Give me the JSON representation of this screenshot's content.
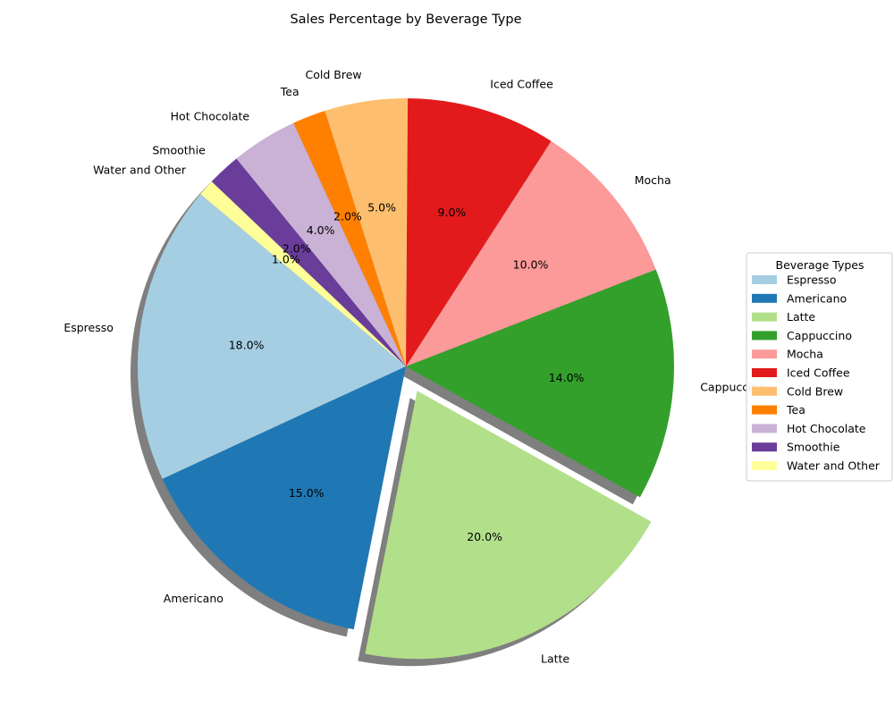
{
  "chart_data": {
    "type": "pie",
    "title": "Sales Percentage by Beverage Type",
    "categories": [
      "Espresso",
      "Americano",
      "Latte",
      "Cappuccino",
      "Mocha",
      "Iced Coffee",
      "Cold Brew",
      "Tea",
      "Hot Chocolate",
      "Smoothie",
      "Water and Other"
    ],
    "values": [
      18,
      15,
      20,
      14,
      10,
      9,
      5,
      2,
      4,
      2,
      1
    ],
    "value_labels": [
      "18.0%",
      "15.0%",
      "20.0%",
      "14.0%",
      "10.0%",
      "9.0%",
      "5.0%",
      "2.0%",
      "4.0%",
      "2.0%",
      "1.0%"
    ],
    "colors": [
      "#a6cee3",
      "#1f78b4",
      "#b2df8a",
      "#33a02c",
      "#fb9a99",
      "#e31a1c",
      "#fdbf6f",
      "#ff7f00",
      "#cab2d6",
      "#6a3d9a",
      "#ffff99"
    ],
    "exploded": "Latte",
    "shadow": true,
    "legend": {
      "title": "Beverage Types",
      "placement": "center-right"
    }
  }
}
